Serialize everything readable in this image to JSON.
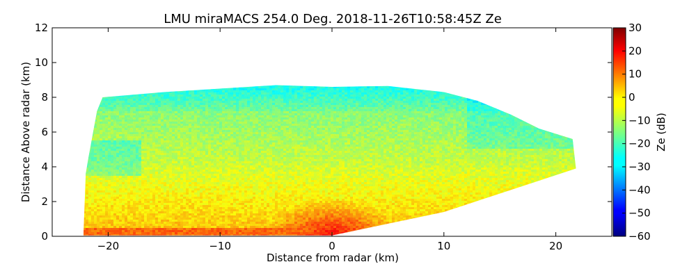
{
  "chart_data": {
    "type": "heatmap",
    "title": "LMU miraMACS 254.0 Deg. 2018-11-26T10:58:45Z  Ze",
    "xlabel": "Distance from radar (km)",
    "ylabel": "Distance Above radar  (km)",
    "xlim": [
      -25,
      25
    ],
    "ylim": [
      0,
      12
    ],
    "xticks": [
      -20,
      -10,
      0,
      10,
      20
    ],
    "xtick_labels": [
      "−20",
      "−10",
      "0",
      "10",
      "20"
    ],
    "yticks": [
      0,
      2,
      4,
      6,
      8,
      10,
      12
    ],
    "ytick_labels": [
      "0",
      "2",
      "4",
      "6",
      "8",
      "10",
      "12"
    ],
    "colorbar": {
      "label": "Ze (dB)",
      "range": [
        -60,
        30
      ],
      "ticks": [
        30,
        20,
        10,
        0,
        -10,
        -20,
        -30,
        -40,
        -50,
        -60
      ],
      "tick_labels": [
        "30",
        "20",
        "10",
        "0",
        "−10",
        "−20",
        "−30",
        "−40",
        "−50",
        "−60"
      ],
      "colormap": "jet"
    },
    "echo_region": {
      "description": "RHI scan echo",
      "outline_km": [
        [
          -22.2,
          0.2
        ],
        [
          -22.0,
          3.6
        ],
        [
          -21.8,
          4.4
        ],
        [
          -21.0,
          7.2
        ],
        [
          -20.5,
          8.0
        ],
        [
          -15,
          8.3
        ],
        [
          -10,
          8.5
        ],
        [
          -5,
          8.7
        ],
        [
          0,
          8.6
        ],
        [
          5,
          8.65
        ],
        [
          10,
          8.3
        ],
        [
          13,
          7.8
        ],
        [
          16,
          7.0
        ],
        [
          18.5,
          6.2
        ],
        [
          21.5,
          5.6
        ],
        [
          21.8,
          3.9
        ],
        [
          10,
          1.4
        ],
        [
          0,
          0.05
        ],
        [
          -22.2,
          0.05
        ]
      ],
      "typical_values_dB": {
        "cloud_top_8km": -25,
        "mid_cloud_4to6km": -12,
        "lower_cloud_1to3km": -5,
        "near_radar_max": 12,
        "surface_band_left": 8
      }
    }
  }
}
